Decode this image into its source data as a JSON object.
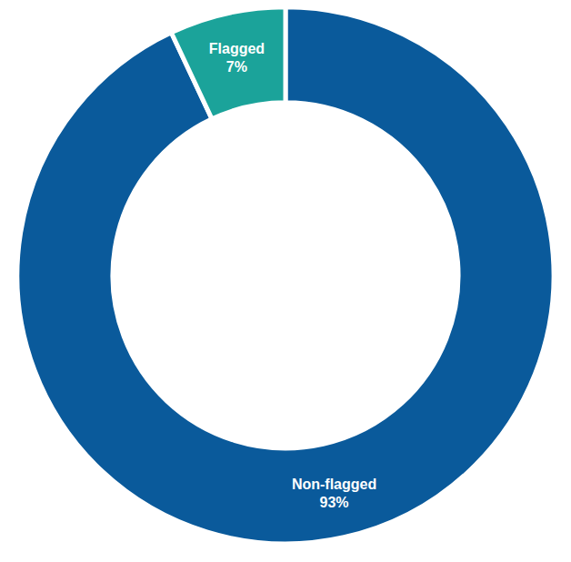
{
  "chart_data": {
    "type": "pie",
    "categories": [
      "Non-flagged",
      "Flagged"
    ],
    "values": [
      93,
      7
    ],
    "value_labels": [
      "93%",
      "7%"
    ],
    "colors": [
      "#0a5a9b",
      "#1ba39a"
    ],
    "data_labels": true
  }
}
